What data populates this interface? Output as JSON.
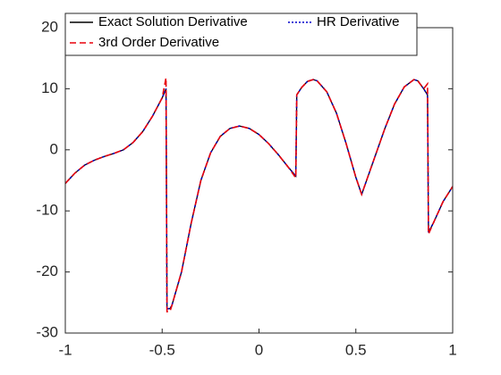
{
  "chart_data": {
    "type": "line",
    "x": [
      -1,
      -0.95,
      -0.9,
      -0.85,
      -0.8,
      -0.75,
      -0.7,
      -0.65,
      -0.6,
      -0.55,
      -0.5,
      -0.48,
      -0.475,
      -0.46,
      -0.45,
      -0.4,
      -0.35,
      -0.3,
      -0.25,
      -0.2,
      -0.15,
      -0.1,
      -0.05,
      0,
      0.05,
      0.1,
      0.15,
      0.19,
      0.195,
      0.22,
      0.25,
      0.28,
      0.3,
      0.35,
      0.4,
      0.45,
      0.5,
      0.53,
      0.55,
      0.6,
      0.65,
      0.7,
      0.75,
      0.8,
      0.82,
      0.85,
      0.87,
      0.875,
      0.9,
      0.95,
      1
    ],
    "series": [
      {
        "name": "Exact Solution Derivative",
        "color": "#000000",
        "style": "solid",
        "values": [
          -5.5,
          -3.8,
          -2.5,
          -1.7,
          -1.1,
          -0.6,
          0,
          1.2,
          3,
          5.5,
          8.5,
          10,
          -26,
          -26,
          -25.5,
          -20,
          -12,
          -5,
          -0.5,
          2.2,
          3.5,
          3.9,
          3.5,
          2.5,
          1,
          -0.8,
          -2.8,
          -4.3,
          9,
          10.2,
          11.2,
          11.5,
          11.3,
          9.5,
          6,
          1,
          -4.5,
          -7.3,
          -5.5,
          -1,
          3.5,
          7.5,
          10.3,
          11.5,
          11.3,
          10,
          9,
          -13.5,
          -12,
          -8.5,
          -6
        ]
      },
      {
        "name": "HR Derivative",
        "color": "#0000cc",
        "style": "dotted",
        "values": [
          -5.5,
          -3.8,
          -2.5,
          -1.7,
          -1.1,
          -0.6,
          0,
          1.2,
          3,
          5.5,
          8.5,
          10,
          -26,
          -26,
          -25.5,
          -20,
          -12,
          -5,
          -0.5,
          2.2,
          3.5,
          3.9,
          3.5,
          2.5,
          1,
          -0.8,
          -2.8,
          -4.3,
          9,
          10.2,
          11.2,
          11.5,
          11.3,
          9.5,
          6,
          1,
          -4.5,
          -7.3,
          -5.5,
          -1,
          3.5,
          7.5,
          10.3,
          11.5,
          11.3,
          10,
          9,
          -13.5,
          -12,
          -8.5,
          -6
        ]
      },
      {
        "name": "3rd Order Derivative",
        "color": "#e8000b",
        "style": "dashed",
        "values": [
          -5.5,
          -3.8,
          -2.5,
          -1.7,
          -1.1,
          -0.6,
          0,
          1.2,
          3,
          5.5,
          8.5,
          11.8,
          -26.5,
          -26.5,
          -25.5,
          -20,
          -12,
          -5,
          -0.5,
          2.2,
          3.5,
          3.9,
          3.5,
          2.5,
          1,
          -0.8,
          -2.8,
          -4.6,
          9,
          10.2,
          11.2,
          11.5,
          11.3,
          9.5,
          6,
          1,
          -4.5,
          -7.3,
          -5.5,
          -1,
          3.5,
          7.5,
          10.3,
          11.5,
          11.3,
          10,
          10.8,
          -13.8,
          -12,
          -8.5,
          -6
        ]
      }
    ],
    "xlim": [
      -1,
      1
    ],
    "xticks": [
      -1,
      -0.5,
      0,
      0.5,
      1
    ],
    "ylim": [
      -30,
      20
    ],
    "yticks": [
      -30,
      -20,
      -10,
      0,
      10,
      20
    ],
    "legend": "top-left"
  }
}
